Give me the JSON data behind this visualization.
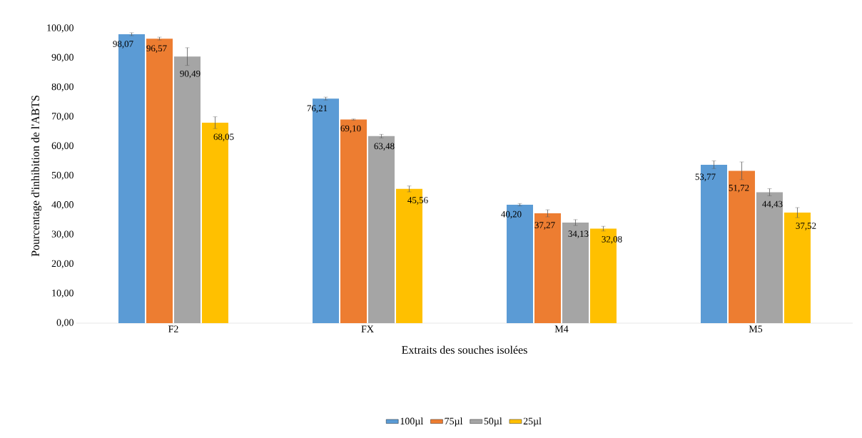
{
  "chart_data": {
    "type": "bar",
    "ylabel": "Pourcentage d'inhibition de l'ABTS",
    "xlabel": "Extraits des souches isolées",
    "categories": [
      "F2",
      "FX",
      "M4",
      "M5"
    ],
    "series": [
      {
        "name": "100µl",
        "color": "#5b9bd5",
        "values": [
          98.07,
          76.21,
          40.2,
          53.77
        ],
        "errors": [
          0.5,
          0.5,
          0.4,
          1.3
        ],
        "value_labels": [
          "98,07",
          "76,21",
          "40,20",
          "53,77"
        ]
      },
      {
        "name": "75µl",
        "color": "#ed7d31",
        "values": [
          96.57,
          69.1,
          37.27,
          51.72
        ],
        "errors": [
          0.5,
          0.2,
          1.2,
          3
        ],
        "value_labels": [
          "96,57",
          "69,10",
          "37,27",
          "51,72"
        ]
      },
      {
        "name": "50µl",
        "color": "#a5a5a5",
        "values": [
          90.49,
          63.48,
          34.13,
          44.43
        ],
        "errors": [
          3,
          0.6,
          1,
          1.2
        ],
        "value_labels": [
          "90,49",
          "63,48",
          "34,13",
          "44,43"
        ]
      },
      {
        "name": "25µl",
        "color": "#ffc000",
        "values": [
          68.05,
          45.56,
          32.08,
          37.52
        ],
        "errors": [
          2,
          1,
          0.8,
          1.7
        ],
        "value_labels": [
          "68,05",
          "45,56",
          "32,08",
          "37,52"
        ]
      }
    ],
    "ylim": [
      0,
      100
    ],
    "yticks": [
      {
        "value": 0,
        "label": "0,00"
      },
      {
        "value": 10,
        "label": "10,00"
      },
      {
        "value": 20,
        "label": "20,00"
      },
      {
        "value": 30,
        "label": "30,00"
      },
      {
        "value": 40,
        "label": "40,00"
      },
      {
        "value": 50,
        "label": "50,00"
      },
      {
        "value": 60,
        "label": "60,00"
      },
      {
        "value": 70,
        "label": "70,00"
      },
      {
        "value": 80,
        "label": "80,00"
      },
      {
        "value": 90,
        "label": "90,00"
      },
      {
        "value": 100,
        "label": "100,00"
      }
    ],
    "grid": false,
    "legend": "bottom"
  }
}
